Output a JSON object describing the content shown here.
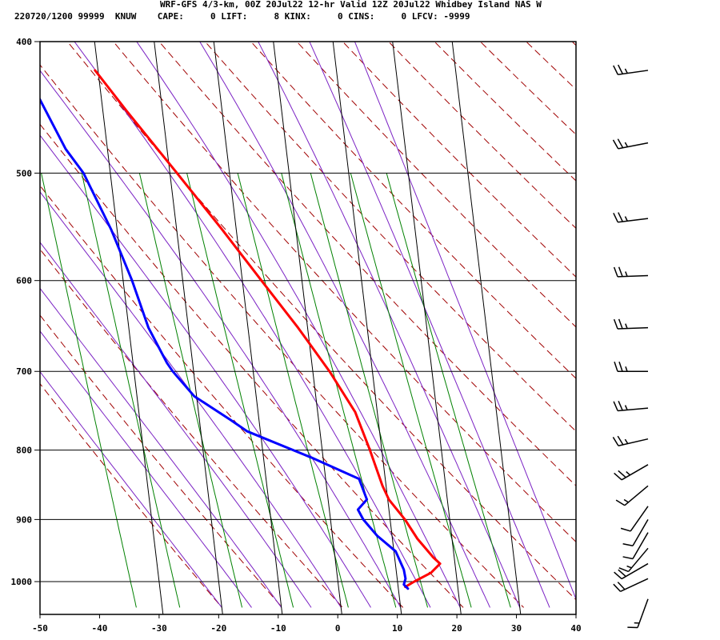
{
  "header": {
    "line1": "WRF-GFS 4/3-km, 00Z 20Jul22 12-hr Valid 12Z 20Jul22 Whidbey Island NAS W",
    "line2": "220720/1200 99999  KNUW    CAPE:     0 LIFT:     8 KINX:     0 CINS:     0 LFCV: -9999"
  },
  "colors": {
    "temperature": "#ff0000",
    "dewpoint": "#0000ff",
    "dry_adiabat": "#a00000",
    "moist_adiabat": "#7b22c4",
    "mixing_ratio": "#008000",
    "grid": "#000000"
  },
  "chart_data": {
    "type": "line",
    "title": "",
    "xlabel": "",
    "ylabel": "",
    "xlim": [
      -50,
      40
    ],
    "ylim": [
      1040,
      400
    ],
    "y_scale": "log-pressure (skew-T)",
    "grid": true,
    "pressure_ticks": [
      400,
      500,
      600,
      700,
      800,
      900,
      1000
    ],
    "temperature_ticks": [
      -50,
      -40,
      -30,
      -20,
      -10,
      0,
      10,
      20,
      30,
      40
    ],
    "series": [
      {
        "key": "temperature",
        "points": [
          [
            1009,
            11.2
          ],
          [
            1000,
            12.8
          ],
          [
            985,
            15.8
          ],
          [
            970,
            17.5
          ],
          [
            960,
            16.5
          ],
          [
            930,
            14.2
          ],
          [
            900,
            12.5
          ],
          [
            870,
            10.2
          ],
          [
            850,
            9.4
          ],
          [
            800,
            8.0
          ],
          [
            750,
            6.3
          ],
          [
            700,
            2.8
          ],
          [
            650,
            -1.6
          ],
          [
            600,
            -6.8
          ],
          [
            550,
            -12.4
          ],
          [
            500,
            -18.8
          ],
          [
            450,
            -26.0
          ],
          [
            420,
            -30.5
          ]
        ]
      },
      {
        "key": "dewpoint",
        "points": [
          [
            1012,
            11.6
          ],
          [
            1005,
            11.0
          ],
          [
            995,
            11.4
          ],
          [
            980,
            11.3
          ],
          [
            950,
            10.3
          ],
          [
            925,
            7.5
          ],
          [
            900,
            5.5
          ],
          [
            885,
            4.8
          ],
          [
            870,
            6.5
          ],
          [
            840,
            5.6
          ],
          [
            810,
            -2.0
          ],
          [
            775,
            -12.2
          ],
          [
            760,
            -14.8
          ],
          [
            730,
            -20.4
          ],
          [
            700,
            -23.5
          ],
          [
            690,
            -24.3
          ],
          [
            650,
            -26.7
          ],
          [
            600,
            -28.5
          ],
          [
            550,
            -31.0
          ],
          [
            500,
            -34.5
          ],
          [
            480,
            -37.0
          ],
          [
            420,
            -42.3
          ]
        ]
      }
    ],
    "wind_barbs": [
      {
        "pressure": 420,
        "speed_kt": 25,
        "direction_deg": 262
      },
      {
        "pressure": 475,
        "speed_kt": 25,
        "direction_deg": 259
      },
      {
        "pressure": 540,
        "speed_kt": 25,
        "direction_deg": 263
      },
      {
        "pressure": 595,
        "speed_kt": 25,
        "direction_deg": 268
      },
      {
        "pressure": 650,
        "speed_kt": 25,
        "direction_deg": 268
      },
      {
        "pressure": 700,
        "speed_kt": 25,
        "direction_deg": 270
      },
      {
        "pressure": 745,
        "speed_kt": 25,
        "direction_deg": 265
      },
      {
        "pressure": 785,
        "speed_kt": 25,
        "direction_deg": 257
      },
      {
        "pressure": 820,
        "speed_kt": 25,
        "direction_deg": 240
      },
      {
        "pressure": 850,
        "speed_kt": 15,
        "direction_deg": 230
      },
      {
        "pressure": 880,
        "speed_kt": 10,
        "direction_deg": 215
      },
      {
        "pressure": 900,
        "speed_kt": 10,
        "direction_deg": 210
      },
      {
        "pressure": 920,
        "speed_kt": 10,
        "direction_deg": 210
      },
      {
        "pressure": 945,
        "speed_kt": 15,
        "direction_deg": 220
      },
      {
        "pressure": 970,
        "speed_kt": 20,
        "direction_deg": 240
      },
      {
        "pressure": 995,
        "speed_kt": 20,
        "direction_deg": 245
      },
      {
        "pressure": 1030,
        "speed_kt": 15,
        "direction_deg": 200
      }
    ]
  }
}
